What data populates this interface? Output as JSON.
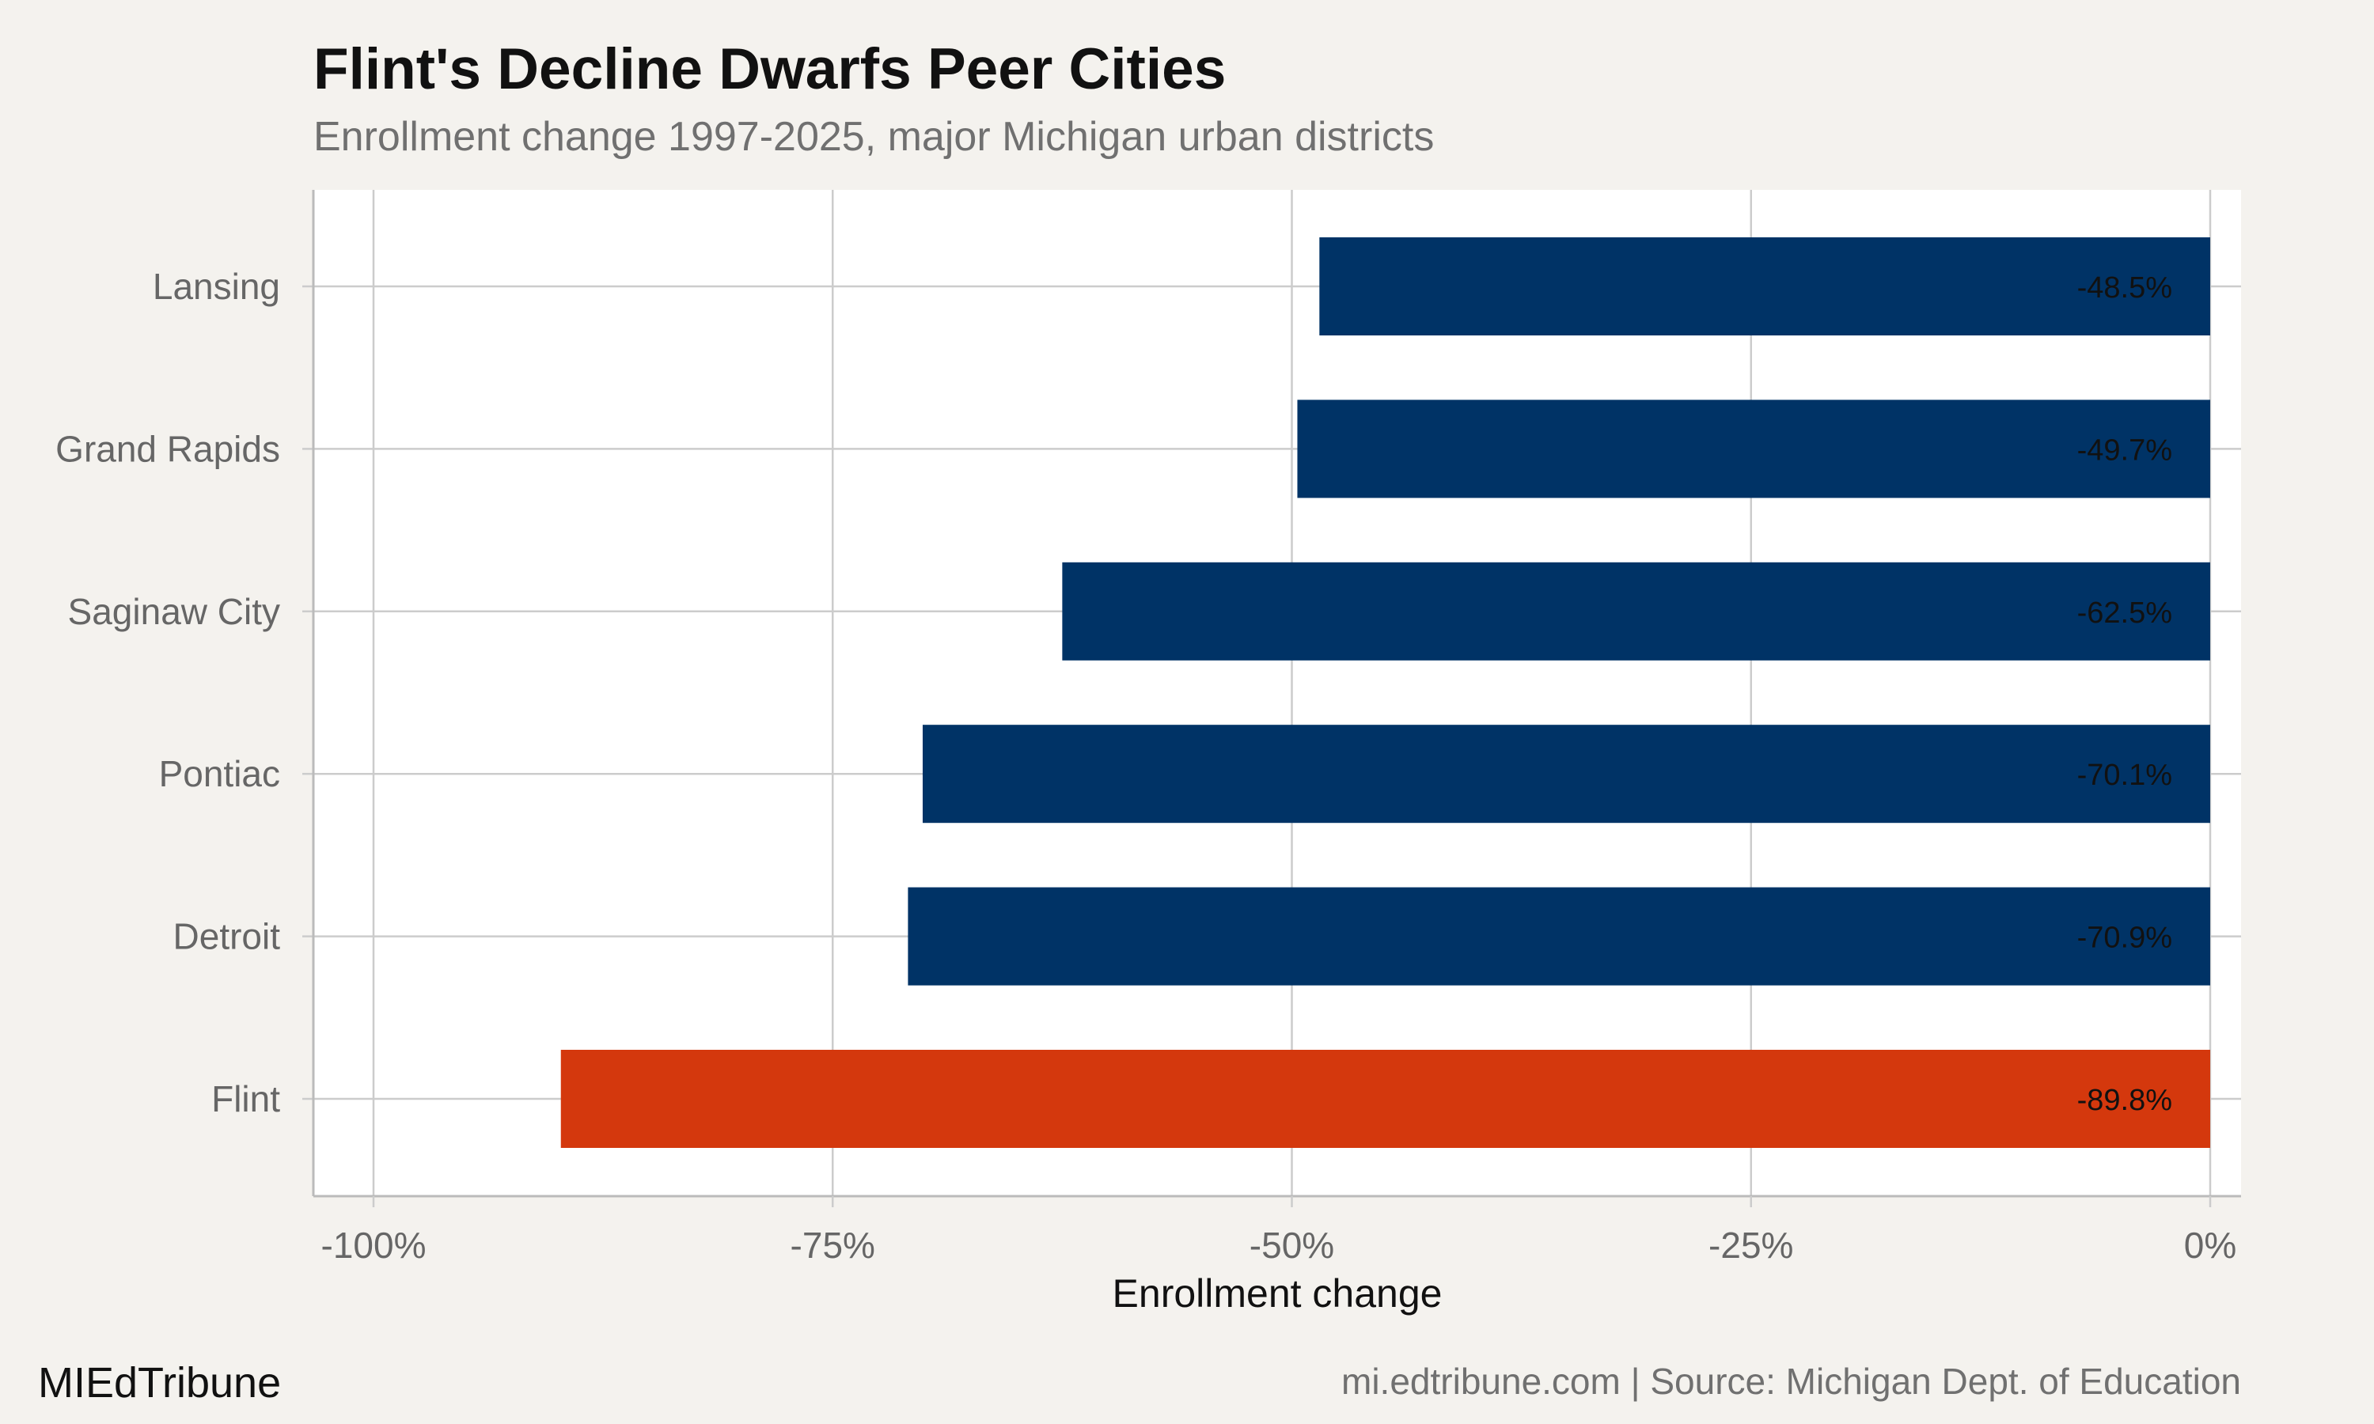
{
  "chart_data": {
    "type": "bar",
    "orientation": "horizontal",
    "title": "Flint's Decline Dwarfs Peer Cities",
    "subtitle": "Enrollment change 1997-2025, major Michigan urban districts",
    "xlabel": "Enrollment change",
    "ylabel": "",
    "xlim": [
      -100,
      0
    ],
    "x_ticks": [
      -100,
      -75,
      -50,
      -25,
      0
    ],
    "x_tick_labels": [
      "-100%",
      "-75%",
      "-50%",
      "-25%",
      "0%"
    ],
    "categories": [
      "Lansing",
      "Grand Rapids",
      "Saginaw City",
      "Pontiac",
      "Detroit",
      "Flint"
    ],
    "values": [
      -48.5,
      -49.7,
      -62.5,
      -70.1,
      -70.9,
      -89.8
    ],
    "data_labels": [
      "-48.5%",
      "-49.7%",
      "-62.5%",
      "-70.1%",
      "-70.9%",
      "-89.8%"
    ],
    "highlight": "Flint",
    "colors": {
      "default_bar": "#003366",
      "highlight_bar": "#d4380d",
      "panel_background": "#ffffff",
      "page_background": "#f4f2ee",
      "grid": "#cccccc"
    },
    "grid": true,
    "legend": "none"
  },
  "footer": {
    "brand": "MIEdTribune",
    "caption": "mi.edtribune.com | Source: Michigan Dept. of Education"
  }
}
